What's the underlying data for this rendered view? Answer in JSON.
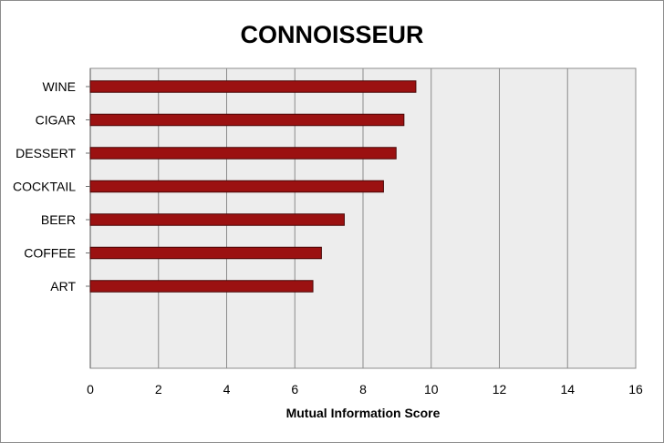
{
  "chart_data": {
    "type": "bar",
    "orientation": "horizontal",
    "title": "CONNOISSEUR",
    "xlabel": "Mutual Information Score",
    "ylabel": "",
    "categories": [
      "WINE",
      "CIGAR",
      "DESSERT",
      "COCKTAIL",
      "BEER",
      "COFFEE",
      "ART"
    ],
    "values": [
      9.55,
      9.2,
      8.97,
      8.6,
      7.45,
      6.78,
      6.53
    ],
    "xlim": [
      0,
      16
    ],
    "xticks": [
      "0",
      "2",
      "4",
      "6",
      "8",
      "10",
      "12",
      "14",
      "16"
    ],
    "grid": true,
    "legend": "none",
    "colors": {
      "bar": "#9b1111",
      "bar_edge": "#4a0606",
      "plot_bg": "#ededed",
      "grid": "#8c8c8c"
    }
  }
}
